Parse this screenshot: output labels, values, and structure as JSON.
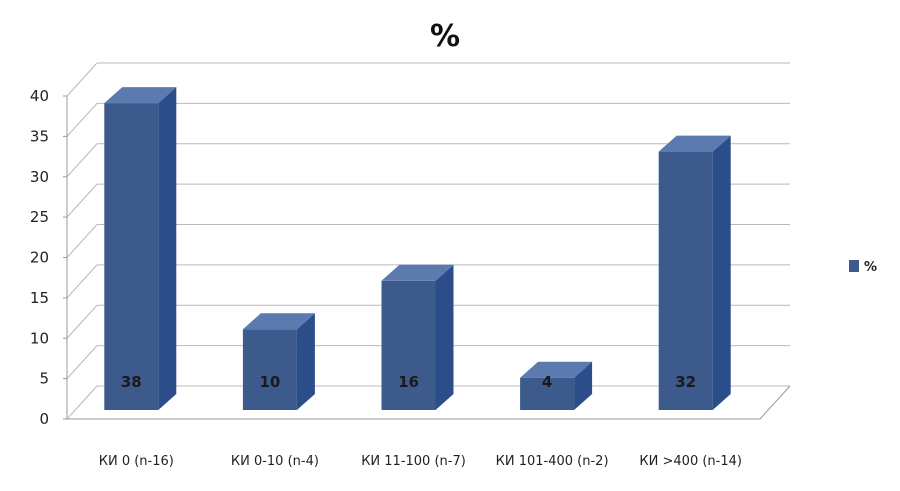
{
  "chart_data": {
    "type": "bar",
    "title": "%",
    "categories": [
      "КИ 0 (n-16)",
      "КИ 0-10 (n-4)",
      "КИ 11-100 (n-7)",
      "КИ 101-400 (n-2)",
      "КИ >400 (n-14)"
    ],
    "series": [
      {
        "name": "%",
        "values": [
          38,
          10,
          16,
          4,
          32
        ],
        "color": "#3c5a8c"
      }
    ],
    "ylim": [
      0,
      40
    ],
    "yticks": [
      "0",
      "5",
      "10",
      "15",
      "20",
      "25",
      "30",
      "35",
      "40"
    ],
    "data_labels": [
      "38",
      "10",
      "16",
      "4",
      "32"
    ],
    "grid": true,
    "legend": "right",
    "style": "3d-column"
  }
}
